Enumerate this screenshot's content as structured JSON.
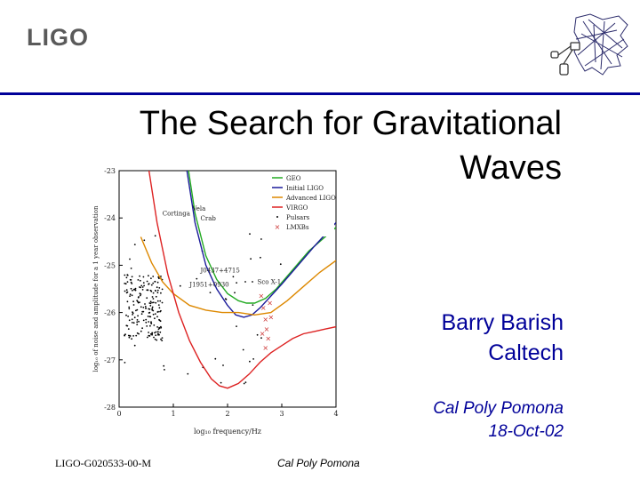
{
  "header": {
    "logo_text": "LIGO",
    "logo_icon": "ligo-interferometer-logo",
    "rule_color": "#000099"
  },
  "title": {
    "line1": "The Search for Gravitational",
    "line2": "Waves"
  },
  "author": {
    "name": "Barry Barish",
    "affiliation": "Caltech"
  },
  "event": {
    "place": "Cal Poly Pomona",
    "date": "18-Oct-02"
  },
  "footer": {
    "doc_id": "LIGO-G020533-00-M",
    "venue": "Cal Poly Pomona"
  },
  "chart_data": {
    "type": "line",
    "xlabel": "log₁₀ frequency/Hz",
    "ylabel": "log₁₀ of noise and amplitude for a 1 year observation",
    "xlim": [
      0,
      4
    ],
    "ylim": [
      -28,
      -23
    ],
    "xticks": [
      0,
      1,
      2,
      3,
      4
    ],
    "yticks": [
      -23,
      -24,
      -25,
      -26,
      -27,
      -28
    ],
    "grid": false,
    "legend": {
      "position": "top-right"
    },
    "series": [
      {
        "name": "GEO",
        "color": "#22aa22",
        "x": [
          1.28,
          1.4,
          1.6,
          1.8,
          2.0,
          2.2,
          2.35,
          2.5,
          2.7,
          2.9,
          3.2,
          3.5,
          3.8,
          4.0
        ],
        "y": [
          -23,
          -23.9,
          -24.8,
          -25.3,
          -25.6,
          -25.75,
          -25.8,
          -25.8,
          -25.7,
          -25.5,
          -25.1,
          -24.7,
          -24.4,
          -24.2
        ]
      },
      {
        "name": "Initial LIGO",
        "color": "#1a1a9a",
        "x": [
          1.25,
          1.4,
          1.6,
          1.8,
          2.0,
          2.15,
          2.3,
          2.45,
          2.6,
          2.8,
          3.0,
          3.3,
          3.6,
          4.0
        ],
        "y": [
          -23,
          -24.1,
          -25,
          -25.5,
          -25.85,
          -26.05,
          -26.1,
          -26.05,
          -25.9,
          -25.65,
          -25.4,
          -25.0,
          -24.6,
          -24.1
        ]
      },
      {
        "name": "Advanced LIGO",
        "color": "#dd8800",
        "x": [
          0.4,
          0.6,
          0.8,
          1.0,
          1.3,
          1.6,
          1.9,
          2.2,
          2.5,
          2.8,
          3.1,
          3.4,
          3.7,
          4.0
        ],
        "y": [
          -24.4,
          -24.95,
          -25.35,
          -25.6,
          -25.85,
          -25.95,
          -26.0,
          -26.0,
          -26.05,
          -26.0,
          -25.75,
          -25.45,
          -25.15,
          -24.9
        ]
      },
      {
        "name": "VIRGO",
        "color": "#dd2222",
        "x": [
          0.55,
          0.7,
          0.9,
          1.1,
          1.3,
          1.5,
          1.7,
          1.85,
          2.0,
          2.2,
          2.4,
          2.6,
          2.8,
          3.0,
          3.2,
          3.4,
          3.6,
          3.8,
          4.0
        ],
        "y": [
          -23,
          -24.1,
          -25.2,
          -26.0,
          -26.6,
          -27.05,
          -27.4,
          -27.55,
          -27.6,
          -27.5,
          -27.3,
          -27.05,
          -26.85,
          -26.7,
          -26.55,
          -26.45,
          -26.4,
          -26.35,
          -26.3
        ]
      },
      {
        "name": "Pulsars",
        "color": "#000000",
        "marker": "dot"
      },
      {
        "name": "LMXBs",
        "color": "#cc3333",
        "marker": "x"
      }
    ],
    "annotations": [
      {
        "text": "Vela",
        "x": 1.35,
        "y": -23.85
      },
      {
        "text": "Crab",
        "x": 1.5,
        "y": -24.05
      },
      {
        "text": "Cortinga",
        "x": 0.8,
        "y": -23.95
      },
      {
        "text": "J0437+4715",
        "x": 1.5,
        "y": -25.15
      },
      {
        "text": "J1951+0930",
        "x": 1.3,
        "y": -25.45
      },
      {
        "text": "Sco X-1",
        "x": 2.55,
        "y": -25.4
      }
    ]
  }
}
